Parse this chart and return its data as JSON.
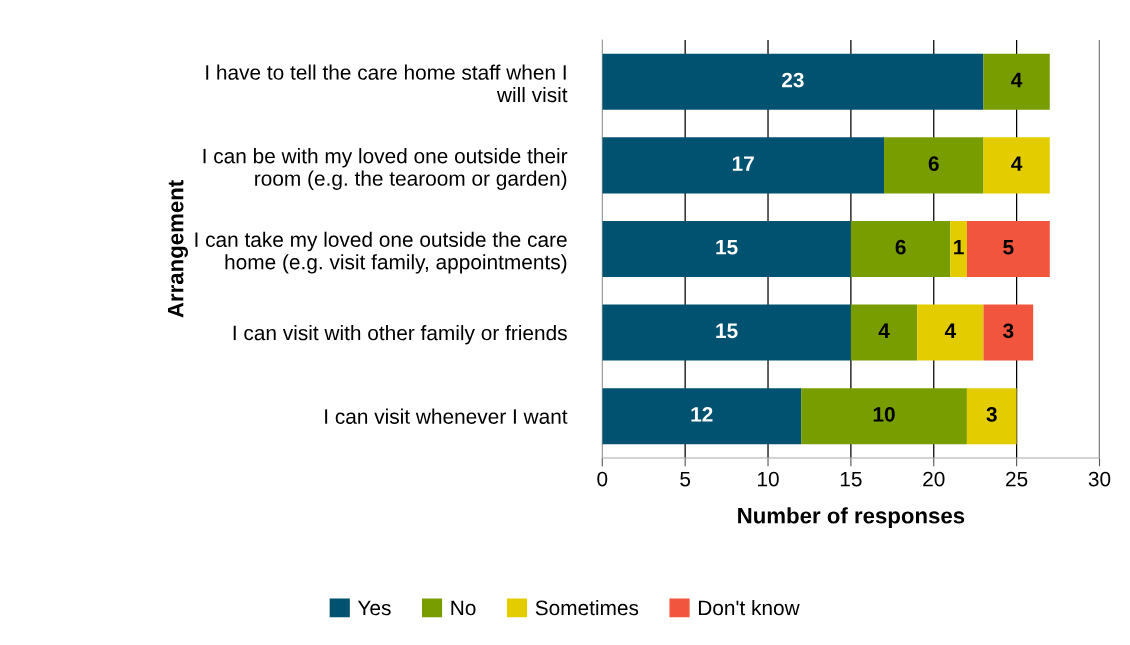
{
  "chart_data": {
    "type": "bar",
    "orientation": "horizontal",
    "stacked": true,
    "xlabel": "Number of responses",
    "ylabel": "Arrangement",
    "categories": [
      "I have to tell the care home staff when I will visit",
      "I can be with my loved one outside their room (e.g. the tearoom or garden)",
      "I can take my loved one outside the care home (e.g. visit family, appointments)",
      "I can visit with other family or friends",
      "I can visit whenever I want"
    ],
    "series": [
      {
        "name": "Yes",
        "color": "#005270",
        "values": [
          23,
          17,
          15,
          15,
          12
        ]
      },
      {
        "name": "No",
        "color": "#789d00",
        "values": [
          4,
          6,
          6,
          4,
          10
        ]
      },
      {
        "name": "Sometimes",
        "color": "#e3cc00",
        "values": [
          null,
          4,
          1,
          4,
          3
        ]
      },
      {
        "name": "Don't know",
        "color": "#f2553d",
        "values": [
          null,
          null,
          5,
          3,
          null
        ]
      }
    ],
    "xlim": [
      0,
      30
    ],
    "xticks": [
      0,
      5,
      10,
      15,
      20,
      25,
      30
    ],
    "grid": "x",
    "legend": "bottom",
    "data_labels": true
  }
}
